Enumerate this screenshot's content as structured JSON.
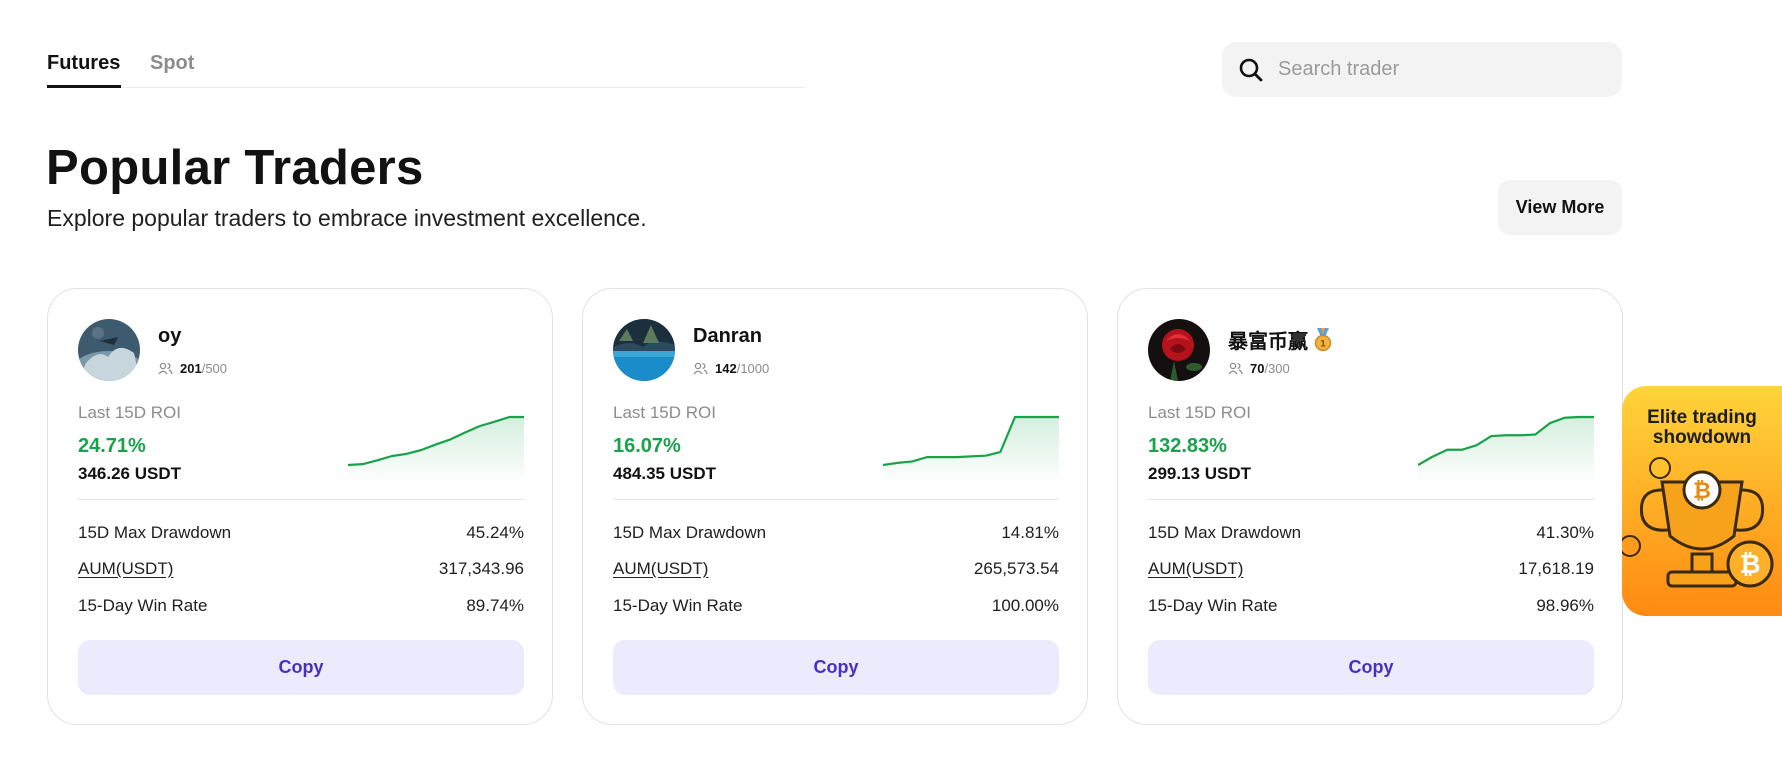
{
  "tabs": [
    {
      "label": "Futures",
      "active": true
    },
    {
      "label": "Spot",
      "active": false
    }
  ],
  "search": {
    "placeholder": "Search trader",
    "icon": "search-icon"
  },
  "header": {
    "title": "Popular Traders",
    "subtitle": "Explore popular traders to embrace investment excellence.",
    "view_more_label": "View More"
  },
  "colors": {
    "roi_green": "#18a34a",
    "copy_bg": "#eceafd",
    "copy_text": "#4a2fc0"
  },
  "traders": [
    {
      "name": "oy",
      "followers": "201",
      "followers_max": "/500",
      "roi_label": "Last 15D ROI",
      "roi": "24.71%",
      "pnl": "346.26 USDT",
      "trend": [
        0.3,
        0.5,
        1.4,
        2.4,
        2.9,
        3.8,
        5.1,
        6.3,
        7.9,
        9.4,
        10.4,
        11.5,
        11.5
      ],
      "stats": [
        {
          "label": "15D Max Drawdown",
          "value": "45.24%"
        },
        {
          "label": "AUM(USDT)",
          "value": "317,343.96"
        },
        {
          "label": "15-Day Win Rate",
          "value": "89.74%"
        }
      ],
      "copy_label": "Copy"
    },
    {
      "name": "Danran",
      "followers": "142",
      "followers_max": "/1000",
      "roi_label": "Last 15D ROI",
      "roi": "16.07%",
      "pnl": "484.35 USDT",
      "trend": [
        0.1,
        0.4,
        0.6,
        1.2,
        1.2,
        1.2,
        1.3,
        1.4,
        1.9,
        6.8,
        6.8,
        6.8,
        6.8
      ],
      "stats": [
        {
          "label": "15D Max Drawdown",
          "value": "14.81%"
        },
        {
          "label": "AUM(USDT)",
          "value": "265,573.54"
        },
        {
          "label": "15-Day Win Rate",
          "value": "100.00%"
        }
      ],
      "copy_label": "Copy"
    },
    {
      "name": "暴富币赢",
      "badge": "medal-icon",
      "followers": "70",
      "followers_max": "/300",
      "roi_label": "Last 15D ROI",
      "roi": "132.83%",
      "pnl": "299.13 USDT",
      "trend": [
        0.2,
        1.3,
        2.2,
        2.2,
        2.8,
        4.0,
        4.1,
        4.1,
        4.2,
        5.7,
        6.4,
        6.5,
        6.5
      ],
      "stats": [
        {
          "label": "15D Max Drawdown",
          "value": "41.30%"
        },
        {
          "label": "AUM(USDT)",
          "value": "17,618.19"
        },
        {
          "label": "15-Day Win Rate",
          "value": "98.96%"
        }
      ],
      "copy_label": "Copy"
    }
  ],
  "promo": {
    "text": "Elite trading showdown"
  }
}
